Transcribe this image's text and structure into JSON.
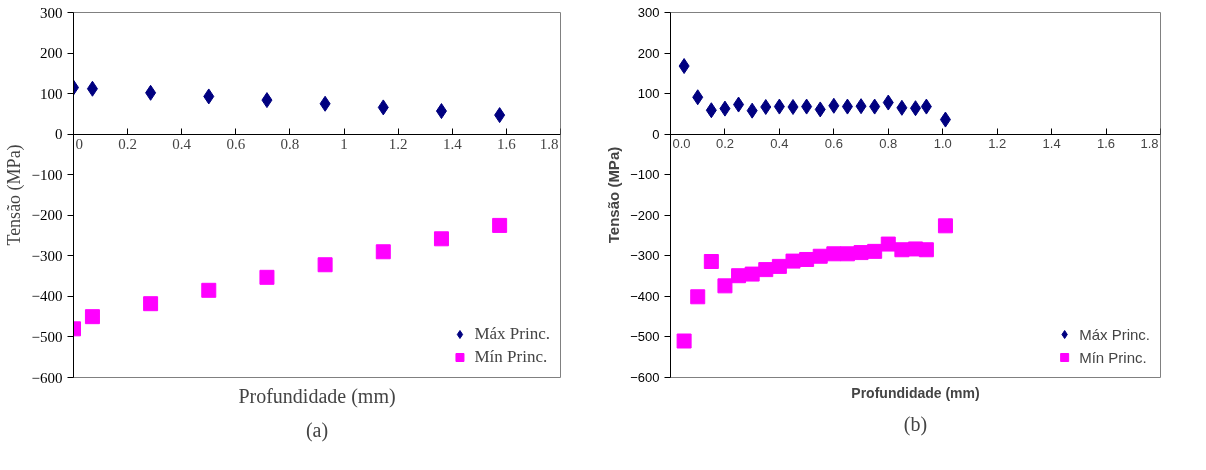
{
  "chart_data": [
    {
      "type": "scatter",
      "xlabel": "Profundidade (mm)",
      "ylabel": "Tensão (MPa)",
      "annotations": [
        "(a)"
      ],
      "xlim": [
        0,
        1.8
      ],
      "ylim": [
        -600,
        300
      ],
      "xticks": [
        0,
        0.2,
        0.4,
        0.6,
        0.8,
        1,
        1.2,
        1.4,
        1.6,
        1.8
      ],
      "yticks": [
        -600,
        -500,
        -400,
        -300,
        -200,
        -100,
        0,
        100,
        200,
        300
      ],
      "grid": false,
      "legend": "bottom right",
      "x": [
        0,
        0.07,
        0.285,
        0.5,
        0.715,
        0.93,
        1.145,
        1.36,
        1.575
      ],
      "series": [
        {
          "name": "Máx Princ.",
          "color": "#000080",
          "marker": "diamond",
          "values": [
            115,
            112,
            102,
            93,
            84,
            75,
            66,
            57,
            47
          ]
        },
        {
          "name": "Mín Princ.",
          "color": "#ff00ff",
          "marker": "square",
          "values": [
            -480,
            -450,
            -418,
            -385,
            -353,
            -322,
            -290,
            -258,
            -225
          ]
        }
      ]
    },
    {
      "type": "scatter",
      "xlabel": "Profundidade (mm)",
      "ylabel": "Tensão (MPa)",
      "annotations": [
        "(b)"
      ],
      "xlim": [
        0,
        1.8
      ],
      "ylim": [
        -600,
        300
      ],
      "xticks": [
        {
          "value": 0,
          "label": "0.0"
        },
        {
          "value": 0.2,
          "label": "0.2"
        },
        {
          "value": 0.4,
          "label": "0.4"
        },
        {
          "value": 0.6,
          "label": "0.6"
        },
        {
          "value": 0.8,
          "label": "0.8"
        },
        {
          "value": 1,
          "label": "1.0"
        },
        {
          "value": 1.2,
          "label": "1.2"
        },
        {
          "value": 1.4,
          "label": "1.4"
        },
        {
          "value": 1.6,
          "label": "1.6"
        },
        {
          "value": 1.8,
          "label": "1.8"
        }
      ],
      "yticks": [
        -600,
        -500,
        -400,
        -300,
        -200,
        -100,
        0,
        100,
        200,
        300
      ],
      "grid": false,
      "legend": "bottom right",
      "x": [
        0.05,
        0.1,
        0.15,
        0.2,
        0.25,
        0.3,
        0.35,
        0.4,
        0.45,
        0.5,
        0.55,
        0.6,
        0.65,
        0.7,
        0.75,
        0.8,
        0.85,
        0.9,
        0.94,
        1.01
      ],
      "series": [
        {
          "name": "Máx Princ.",
          "color": "#000080",
          "marker": "diamond",
          "values": [
            168,
            91,
            59,
            63,
            73,
            58,
            67,
            68,
            67,
            68,
            61,
            70,
            68,
            69,
            68,
            78,
            65,
            64,
            68,
            36
          ]
        },
        {
          "name": "Mín Princ.",
          "color": "#ff00ff",
          "marker": "square",
          "values": [
            -510,
            -401,
            -314,
            -374,
            -349,
            -345,
            -334,
            -326,
            -313,
            -309,
            -301,
            -295,
            -295,
            -292,
            -289,
            -271,
            -285,
            -283,
            -285,
            -226
          ]
        }
      ]
    }
  ]
}
